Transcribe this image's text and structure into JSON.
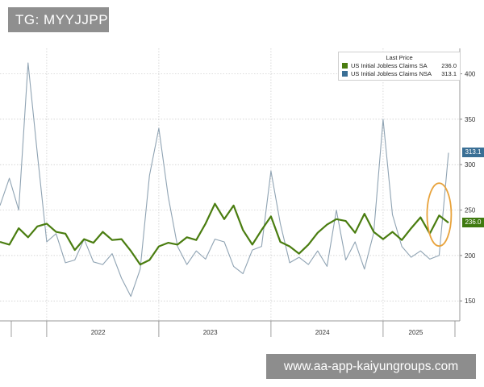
{
  "watermark": {
    "tg_label": "TG: MYYJJPP",
    "url_label": "www.aa-app-kaiyungroups.com"
  },
  "colors": {
    "sa": "#4a7d10",
    "nsa": "#8fa3b3",
    "sa_tag": "#3f7a10",
    "nsa_tag": "#3a6f95",
    "highlight": "#e8a33c",
    "grid": "#c8c8c8"
  },
  "chart_data": {
    "type": "line",
    "legend": {
      "title": "Last Price",
      "placement": "top-right",
      "entries": [
        {
          "name": "US Initial Jobless Claims SA",
          "value": "236.0"
        },
        {
          "name": "US Initial Jobless Claims NSA",
          "value": "313.1"
        }
      ]
    },
    "x_tick_labels": [
      "2022",
      "2023",
      "2024",
      "2025"
    ],
    "y_ticks": [
      150,
      200,
      250,
      300,
      350,
      400
    ],
    "ylim": [
      128,
      428
    ],
    "x_range": [
      "2021-08",
      "2025-08"
    ],
    "last_value_tags": [
      {
        "series": "NSA",
        "value": "313.1"
      },
      {
        "series": "SA",
        "value": "236.0"
      }
    ],
    "series": [
      {
        "name": "US Initial Jobless Claims SA",
        "points": [
          [
            "2021-08",
            215
          ],
          [
            "2021-09",
            212
          ],
          [
            "2021-10",
            230
          ],
          [
            "2021-11",
            220
          ],
          [
            "2021-12",
            232
          ],
          [
            "2022-01",
            235
          ],
          [
            "2022-02",
            226
          ],
          [
            "2022-03",
            224
          ],
          [
            "2022-04",
            206
          ],
          [
            "2022-05",
            218
          ],
          [
            "2022-06",
            214
          ],
          [
            "2022-07",
            226
          ],
          [
            "2022-08",
            217
          ],
          [
            "2022-09",
            218
          ],
          [
            "2022-10",
            205
          ],
          [
            "2022-11",
            190
          ],
          [
            "2022-12",
            195
          ],
          [
            "2023-01",
            210
          ],
          [
            "2023-02",
            214
          ],
          [
            "2023-03",
            212
          ],
          [
            "2023-04",
            220
          ],
          [
            "2023-05",
            217
          ],
          [
            "2023-06",
            235
          ],
          [
            "2023-07",
            257
          ],
          [
            "2023-08",
            240
          ],
          [
            "2023-09",
            255
          ],
          [
            "2023-10",
            228
          ],
          [
            "2023-11",
            212
          ],
          [
            "2023-12",
            228
          ],
          [
            "2024-01",
            243
          ],
          [
            "2024-02",
            215
          ],
          [
            "2024-03",
            210
          ],
          [
            "2024-04",
            202
          ],
          [
            "2024-05",
            212
          ],
          [
            "2024-06",
            225
          ],
          [
            "2024-07",
            234
          ],
          [
            "2024-08",
            240
          ],
          [
            "2024-09",
            238
          ],
          [
            "2024-10",
            225
          ],
          [
            "2024-11",
            246
          ],
          [
            "2024-12",
            226
          ],
          [
            "2025-01",
            218
          ],
          [
            "2025-02",
            226
          ],
          [
            "2025-03",
            217
          ],
          [
            "2025-04",
            230
          ],
          [
            "2025-05",
            242
          ],
          [
            "2025-06",
            224
          ],
          [
            "2025-07",
            244
          ],
          [
            "2025-08",
            236
          ]
        ]
      },
      {
        "name": "US Initial Jobless Claims NSA",
        "points": [
          [
            "2021-08",
            255
          ],
          [
            "2021-09",
            285
          ],
          [
            "2021-10",
            250
          ],
          [
            "2021-11",
            412
          ],
          [
            "2021-12",
            312
          ],
          [
            "2022-01",
            215
          ],
          [
            "2022-02",
            224
          ],
          [
            "2022-03",
            192
          ],
          [
            "2022-04",
            195
          ],
          [
            "2022-05",
            218
          ],
          [
            "2022-06",
            193
          ],
          [
            "2022-07",
            190
          ],
          [
            "2022-08",
            202
          ],
          [
            "2022-09",
            175
          ],
          [
            "2022-10",
            155
          ],
          [
            "2022-11",
            185
          ],
          [
            "2022-12",
            288
          ],
          [
            "2023-01",
            340
          ],
          [
            "2023-02",
            265
          ],
          [
            "2023-03",
            210
          ],
          [
            "2023-04",
            190
          ],
          [
            "2023-05",
            205
          ],
          [
            "2023-06",
            196
          ],
          [
            "2023-07",
            218
          ],
          [
            "2023-08",
            215
          ],
          [
            "2023-09",
            188
          ],
          [
            "2023-10",
            180
          ],
          [
            "2023-11",
            206
          ],
          [
            "2023-12",
            210
          ],
          [
            "2024-01",
            293
          ],
          [
            "2024-02",
            235
          ],
          [
            "2024-03",
            192
          ],
          [
            "2024-04",
            198
          ],
          [
            "2024-05",
            190
          ],
          [
            "2024-06",
            205
          ],
          [
            "2024-07",
            188
          ],
          [
            "2024-08",
            250
          ],
          [
            "2024-09",
            195
          ],
          [
            "2024-10",
            215
          ],
          [
            "2024-11",
            185
          ],
          [
            "2024-12",
            225
          ],
          [
            "2025-01",
            350
          ],
          [
            "2025-02",
            245
          ],
          [
            "2025-03",
            210
          ],
          [
            "2025-04",
            198
          ],
          [
            "2025-05",
            205
          ],
          [
            "2025-06",
            196
          ],
          [
            "2025-07",
            200
          ],
          [
            "2025-08",
            313.1
          ]
        ]
      }
    ],
    "annotation": {
      "type": "ellipse-highlight",
      "around": "2025-07"
    }
  }
}
